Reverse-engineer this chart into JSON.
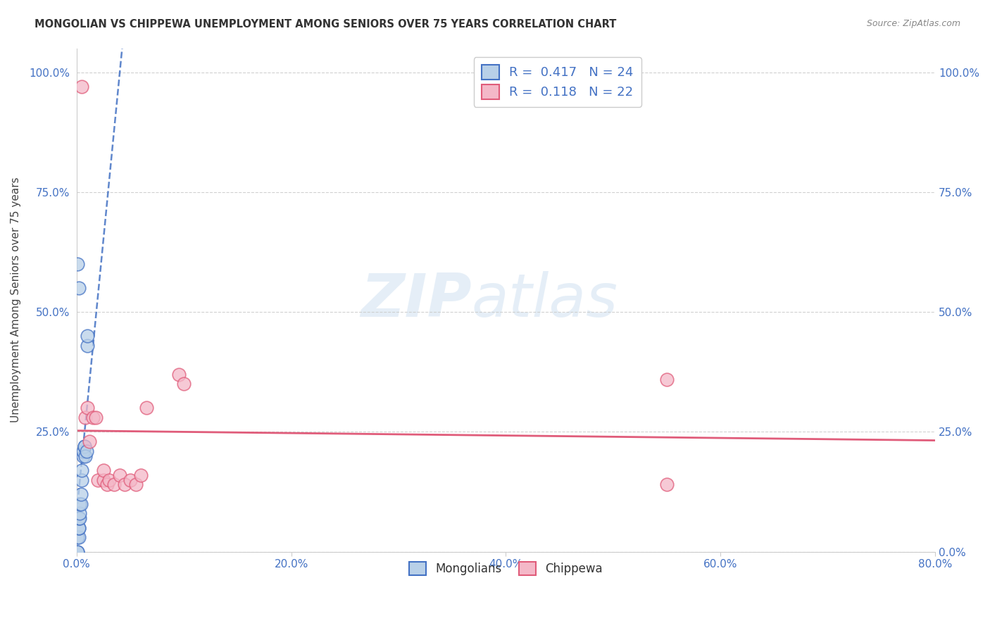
{
  "title": "MONGOLIAN VS CHIPPEWA UNEMPLOYMENT AMONG SENIORS OVER 75 YEARS CORRELATION CHART",
  "source": "Source: ZipAtlas.com",
  "ylabel": "Unemployment Among Seniors over 75 years",
  "xlim": [
    0.0,
    0.8
  ],
  "ylim": [
    0.0,
    1.05
  ],
  "mongolian_R": 0.417,
  "mongolian_N": 24,
  "chippewa_R": 0.118,
  "chippewa_N": 22,
  "mongolian_color": "#b8d0e8",
  "mongolian_line_color": "#4472C4",
  "mongolian_trendline_color": "#4472C4",
  "chippewa_color": "#f4b8c8",
  "chippewa_line_color": "#E05C7A",
  "chippewa_trendline_color": "#E05C7A",
  "mongolian_x": [
    0.001,
    0.001,
    0.001,
    0.002,
    0.002,
    0.002,
    0.002,
    0.003,
    0.003,
    0.003,
    0.004,
    0.004,
    0.005,
    0.005,
    0.006,
    0.006,
    0.007,
    0.007,
    0.008,
    0.009,
    0.01,
    0.01,
    0.002,
    0.001
  ],
  "mongolian_y": [
    0.0,
    0.0,
    0.03,
    0.03,
    0.05,
    0.05,
    0.07,
    0.07,
    0.08,
    0.1,
    0.1,
    0.12,
    0.15,
    0.17,
    0.2,
    0.21,
    0.22,
    0.22,
    0.2,
    0.21,
    0.43,
    0.45,
    0.55,
    0.6
  ],
  "chippewa_x": [
    0.005,
    0.008,
    0.01,
    0.012,
    0.015,
    0.018,
    0.02,
    0.025,
    0.025,
    0.028,
    0.03,
    0.035,
    0.04,
    0.045,
    0.05,
    0.055,
    0.06,
    0.065,
    0.095,
    0.1,
    0.55,
    0.55
  ],
  "chippewa_y": [
    0.97,
    0.28,
    0.3,
    0.23,
    0.28,
    0.28,
    0.15,
    0.15,
    0.17,
    0.14,
    0.15,
    0.14,
    0.16,
    0.14,
    0.15,
    0.14,
    0.16,
    0.3,
    0.37,
    0.35,
    0.36,
    0.14
  ],
  "watermark_zip": "ZIP",
  "watermark_atlas": "atlas",
  "background_color": "#ffffff",
  "grid_color": "#cccccc",
  "tick_color": "#4472C4",
  "ylabel_color": "#444444",
  "title_color": "#333333",
  "source_color": "#888888"
}
